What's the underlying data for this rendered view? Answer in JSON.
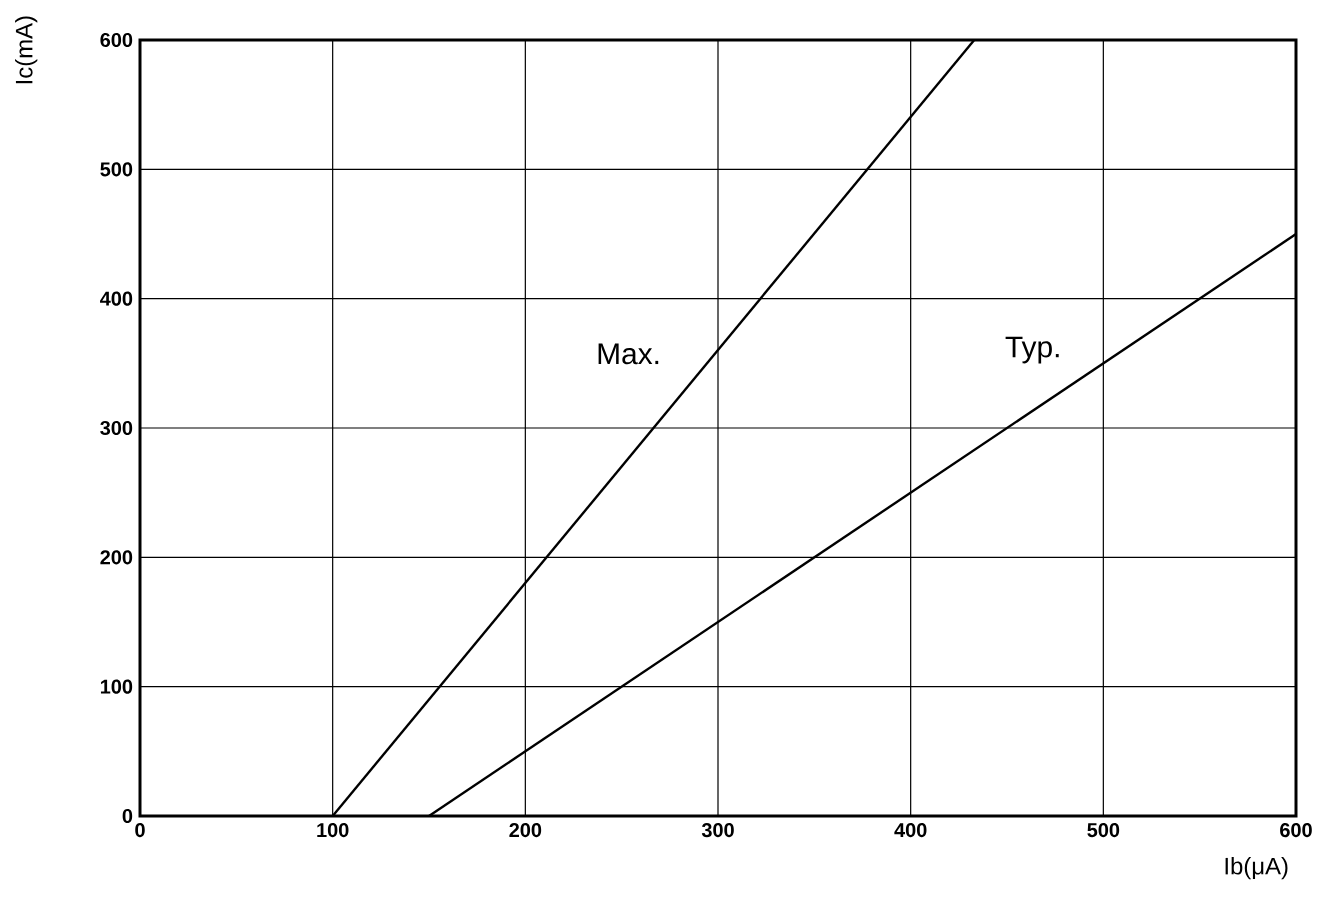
{
  "chart_data": {
    "type": "line",
    "xlabel": "Ib(μA)",
    "ylabel": "Ic(mA)",
    "xlim": [
      0,
      600
    ],
    "ylim": [
      0,
      600
    ],
    "xticks": [
      0,
      100,
      200,
      300,
      400,
      500,
      600
    ],
    "yticks": [
      0,
      100,
      200,
      300,
      400,
      500,
      600
    ],
    "grid": true,
    "legend": false,
    "marker": "none",
    "line_style": "solid",
    "series": [
      {
        "name": "Max.",
        "color": "#000000",
        "x": [
          100,
          433
        ],
        "values": [
          0,
          600
        ]
      },
      {
        "name": "Typ.",
        "color": "#000000",
        "x": [
          150,
          600
        ],
        "values": [
          0,
          450
        ]
      }
    ]
  }
}
